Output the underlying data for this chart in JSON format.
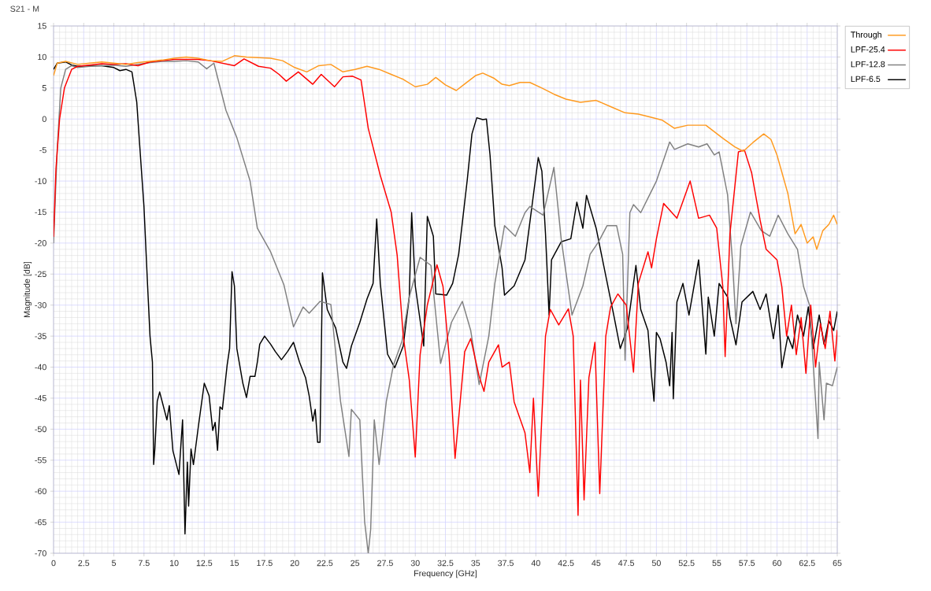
{
  "chart_data": {
    "type": "line",
    "title": "S21 - M",
    "xlabel": "Frequency [GHz]",
    "ylabel": "Magnitude [dB]",
    "xlim": [
      0,
      65
    ],
    "ylim": [
      -70,
      15
    ],
    "xticks": [
      0,
      2.5,
      5,
      7.5,
      10,
      12.5,
      15,
      17.5,
      20,
      22.5,
      25,
      27.5,
      30,
      32.5,
      35,
      37.5,
      40,
      42.5,
      45,
      47.5,
      50,
      52.5,
      55,
      57.5,
      60,
      62.5,
      65
    ],
    "yticks": [
      -70,
      -65,
      -60,
      -55,
      -50,
      -45,
      -40,
      -35,
      -30,
      -25,
      -20,
      -15,
      -10,
      -5,
      0,
      5,
      10,
      15
    ],
    "grid": true,
    "legend": "top right",
    "line_style": "solid",
    "series": [
      {
        "name": "Through",
        "color": "#ff9a1f",
        "x": [
          0,
          0.3,
          1,
          2,
          3,
          4,
          5,
          6,
          7,
          8,
          9,
          10,
          11,
          12,
          13,
          14,
          15,
          16,
          17,
          18,
          19,
          20,
          21,
          22,
          23,
          24,
          25,
          26,
          27,
          28,
          29,
          30,
          31,
          31.7,
          32.5,
          33.4,
          34,
          35,
          35.6,
          36.5,
          37.2,
          37.8,
          38.7,
          39.5,
          40.5,
          41.5,
          42.5,
          43.7,
          45,
          46.2,
          47.4,
          48.5,
          49.3,
          50.5,
          51.5,
          52.6,
          54.1,
          55.5,
          56.5,
          57.2,
          58,
          58.9,
          59.5,
          60,
          60.9,
          61.5,
          62,
          62.5,
          63,
          63.3,
          63.8,
          64.3,
          64.7,
          65
        ],
        "values": [
          7,
          9,
          9.3,
          8.8,
          9,
          9.2,
          9,
          8.8,
          9.1,
          9.3,
          9.5,
          9.8,
          10,
          9.8,
          9.4,
          9.3,
          10.2,
          10,
          9.9,
          9.8,
          9.4,
          8.3,
          7.6,
          8.6,
          8.8,
          7.6,
          8,
          8.5,
          8,
          7.2,
          6.4,
          5.2,
          5.6,
          6.7,
          5.5,
          4.6,
          5.5,
          7,
          7.4,
          6.6,
          5.6,
          5.4,
          5.9,
          5.9,
          5,
          4,
          3.2,
          2.7,
          3,
          2,
          1,
          0.8,
          0.4,
          -0.2,
          -1.5,
          -1,
          -1,
          -3.1,
          -4.5,
          -5.2,
          -3.8,
          -2.4,
          -3.3,
          -5.8,
          -12,
          -18.5,
          -17,
          -20,
          -19,
          -21,
          -18,
          -17,
          -15.5,
          -17
        ]
      },
      {
        "name": "LPF-25.4",
        "color": "#ff0000",
        "x": [
          0,
          0.2,
          0.5,
          0.9,
          1.5,
          2,
          3,
          4,
          5,
          6,
          7,
          8,
          9,
          10,
          11,
          12,
          13,
          14,
          15,
          15.8,
          17,
          18,
          18.7,
          19.3,
          20.3,
          21.5,
          22.2,
          23.3,
          24,
          24.8,
          25.5,
          26.1,
          27.1,
          28,
          28.5,
          29,
          29.5,
          30,
          30.4,
          31,
          31.8,
          32.3,
          32.8,
          33.3,
          34.1,
          34.6,
          35.3,
          35.7,
          36.1,
          36.9,
          37.2,
          37.8,
          38.2,
          39.1,
          39.5,
          39.8,
          40.2,
          40.8,
          41.2,
          41.9,
          42.7,
          43.1,
          43.5,
          43.7,
          44,
          44.4,
          44.9,
          45.3,
          45.8,
          46.2,
          46.8,
          47.5,
          48.1,
          48.5,
          49.3,
          49.6,
          50,
          50.6,
          51.7,
          52.8,
          53.5,
          54.4,
          55,
          55.5,
          55.7,
          56.1,
          56.8,
          57.3,
          57.9,
          58.6,
          59.1,
          60,
          60.4,
          60.8,
          61.2,
          61.6,
          62,
          62.4,
          62.8,
          63.2,
          63.6,
          64,
          64.4,
          64.8,
          65
        ],
        "values": [
          -19,
          -8,
          0,
          5,
          8,
          8.5,
          8.7,
          8.9,
          8.8,
          8.9,
          8.6,
          9.2,
          9.4,
          9.6,
          9.6,
          9.6,
          9.4,
          9,
          8.6,
          9.7,
          8.5,
          8.2,
          7.2,
          6.1,
          7.6,
          5.6,
          7.2,
          5.2,
          6.8,
          6.9,
          6.3,
          -1.5,
          -9.1,
          -15,
          -22,
          -35,
          -42,
          -54.5,
          -38,
          -30,
          -23.5,
          -27,
          -38,
          -54.7,
          -37.5,
          -35.4,
          -41.5,
          -43.9,
          -39.2,
          -36.4,
          -40,
          -39.2,
          -45.6,
          -50.6,
          -57,
          -45,
          -60.8,
          -35,
          -30.7,
          -33.2,
          -30.6,
          -35,
          -63.9,
          -42.1,
          -61.4,
          -41.7,
          -36,
          -60.4,
          -35,
          -30.3,
          -28.2,
          -30,
          -40.8,
          -26.5,
          -21.4,
          -24,
          -19.3,
          -13.6,
          -16,
          -10,
          -16,
          -15.5,
          -17.6,
          -26.9,
          -38.3,
          -18.5,
          -5.3,
          -5,
          -8.7,
          -16.3,
          -21,
          -22.7,
          -27,
          -35,
          -30,
          -38,
          -32,
          -41,
          -30,
          -40,
          -33,
          -37,
          -31,
          -39,
          -34
        ]
      },
      {
        "name": "LPF-12.8",
        "color": "#808080",
        "x": [
          0,
          0.3,
          0.6,
          1,
          1.5,
          2,
          3,
          4,
          5,
          6,
          7,
          8,
          9,
          10,
          11,
          12,
          12.7,
          13.3,
          14.3,
          15.2,
          16.3,
          16.9,
          18,
          19.1,
          19.9,
          20.7,
          21.2,
          22.1,
          23,
          23.8,
          24.5,
          24.7,
          25.4,
          25.8,
          26.1,
          26.3,
          26.6,
          27,
          27.6,
          28.2,
          28.9,
          29.5,
          30.4,
          31.3,
          32.1,
          33,
          33.9,
          34.6,
          35.3,
          36.1,
          36.6,
          37.4,
          38.3,
          39.1,
          39.5,
          40.6,
          41.5,
          42.1,
          43,
          43.9,
          44.5,
          45.2,
          45.9,
          46.7,
          47.2,
          47.4,
          47.8,
          48.1,
          48.7,
          50,
          51.1,
          51.5,
          52.6,
          53.5,
          54.2,
          54.8,
          55.2,
          55.9,
          56.3,
          56.6,
          57,
          57.8,
          58.7,
          59.4,
          60.1,
          60.9,
          61.7,
          62.2,
          62.7,
          63.4,
          63.5,
          63.9,
          64.1,
          64.6,
          65
        ],
        "values": [
          -20,
          -5,
          5,
          8,
          8.6,
          8.3,
          8.5,
          8.6,
          8.7,
          8.5,
          8.8,
          9.1,
          9.3,
          9.3,
          9.4,
          9.2,
          8.1,
          9,
          1.4,
          -3,
          -10,
          -17.6,
          -21.4,
          -26.7,
          -33.5,
          -30.3,
          -31.3,
          -29.4,
          -29.9,
          -45.5,
          -54.4,
          -46.8,
          -48.5,
          -64.9,
          -70,
          -66.2,
          -48.5,
          -55.7,
          -45.5,
          -39.6,
          -35.8,
          -28.7,
          -22.3,
          -23.6,
          -39.4,
          -32.8,
          -29.4,
          -34.1,
          -42.8,
          -35,
          -26.5,
          -17.2,
          -18.9,
          -15.1,
          -14.1,
          -15.5,
          -7.8,
          -19.3,
          -31.6,
          -26.9,
          -21.8,
          -19.8,
          -17.2,
          -17.2,
          -21.8,
          -38.9,
          -15.1,
          -13.8,
          -15.1,
          -10,
          -3.7,
          -4.9,
          -4,
          -4.5,
          -4,
          -5.8,
          -5.3,
          -12.2,
          -22.7,
          -33,
          -20.5,
          -15,
          -18,
          -18.9,
          -15.5,
          -18.5,
          -21,
          -27,
          -30,
          -51.5,
          -39.2,
          -48.5,
          -42.6,
          -43,
          -40
        ]
      },
      {
        "name": "LPF-6.5",
        "color": "#000000",
        "x": [
          0,
          0.3,
          1,
          1.5,
          2,
          3,
          4,
          5,
          5.5,
          6,
          6.5,
          6.9,
          7.2,
          7.5,
          7.8,
          8,
          8.2,
          8.3,
          8.4,
          8.6,
          8.8,
          9.4,
          9.6,
          9.9,
          10.4,
          10.7,
          10.9,
          11.1,
          11.2,
          11.4,
          11.6,
          12,
          12.5,
          12.9,
          13.2,
          13.4,
          13.6,
          13.8,
          14,
          14.4,
          14.6,
          14.8,
          15,
          15.2,
          15.7,
          16,
          16.3,
          16.7,
          16.9,
          17.1,
          17.5,
          18,
          18.4,
          18.9,
          19.4,
          19.9,
          20.4,
          20.9,
          21.2,
          21.5,
          21.7,
          21.9,
          22.1,
          22.3,
          22.7,
          23.4,
          24,
          24.3,
          24.7,
          25.4,
          26,
          26.5,
          26.8,
          27.1,
          27.7,
          28.3,
          29,
          29.5,
          29.7,
          30,
          30.7,
          31,
          31.5,
          31.7,
          32.6,
          33.1,
          33.6,
          34.3,
          34.7,
          35.1,
          35.6,
          35.9,
          36.2,
          36.6,
          37.2,
          37.4,
          38.2,
          39.1,
          39.8,
          40.2,
          40.5,
          40.8,
          41.1,
          41.3,
          42.1,
          42.9,
          43.4,
          43.9,
          44.2,
          45,
          45.7,
          46.5,
          47,
          47.6,
          48.3,
          48.7,
          49.3,
          49.6,
          49.8,
          50,
          50.3,
          50.8,
          51.1,
          51.3,
          51.4,
          51.7,
          52.2,
          52.7,
          53.5,
          54.1,
          54.3,
          54.8,
          55.2,
          55.9,
          56.1,
          56.6,
          57.1,
          58,
          58.6,
          59.1,
          59.7,
          60.1,
          60.4,
          60.9,
          61.3,
          61.7,
          62.2,
          62.6,
          63,
          63.5,
          63.9,
          64.3,
          64.7,
          65
        ],
        "values": [
          8,
          9,
          9.2,
          8.7,
          8.5,
          8.6,
          8.6,
          8.3,
          7.8,
          8,
          7.6,
          2.7,
          -5.8,
          -14.2,
          -26.9,
          -35,
          -39.2,
          -55.7,
          -53.2,
          -45.5,
          -44,
          -48.5,
          -46.2,
          -53.5,
          -57.3,
          -48.5,
          -66.9,
          -55.3,
          -62.4,
          -53.2,
          -55.7,
          -49.7,
          -42.6,
          -44.6,
          -50.2,
          -48.9,
          -53.4,
          -46.4,
          -46.8,
          -39.6,
          -37,
          -24.6,
          -26.9,
          -37,
          -42.6,
          -44.9,
          -41.5,
          -41.5,
          -39.2,
          -36.3,
          -35,
          -36.3,
          -37.5,
          -38.8,
          -37.5,
          -36,
          -39.2,
          -41.7,
          -44.6,
          -48.7,
          -46.8,
          -52.1,
          -52.1,
          -24.8,
          -30.7,
          -33.7,
          -39.2,
          -40.2,
          -36.6,
          -32.8,
          -29,
          -26.5,
          -16.1,
          -26.5,
          -37.9,
          -40.1,
          -36.6,
          -28.7,
          -15.1,
          -26.9,
          -36.6,
          -15.7,
          -18.9,
          -28.2,
          -28.4,
          -26.5,
          -21.8,
          -10,
          -2.4,
          0.2,
          -0.1,
          0,
          -5.8,
          -17.2,
          -24,
          -28.4,
          -26.9,
          -22.7,
          -12.2,
          -6.2,
          -8.4,
          -18.5,
          -31.6,
          -22.7,
          -19.8,
          -19.3,
          -13.4,
          -17.6,
          -12.3,
          -17.6,
          -24.3,
          -32,
          -37,
          -33.7,
          -23.6,
          -30.7,
          -34.1,
          -41.5,
          -45.5,
          -34.4,
          -35.4,
          -39.2,
          -43,
          -34.4,
          -45.1,
          -29.5,
          -26.5,
          -31.6,
          -22.7,
          -37.9,
          -28.7,
          -35,
          -26.5,
          -28.7,
          -32,
          -36.4,
          -29.5,
          -27.8,
          -30.7,
          -28.2,
          -35.4,
          -30,
          -40.1,
          -35,
          -37,
          -31.6,
          -35,
          -30.3,
          -37,
          -31.6,
          -36.3,
          -32.5,
          -34.1,
          -31
        ]
      }
    ]
  }
}
